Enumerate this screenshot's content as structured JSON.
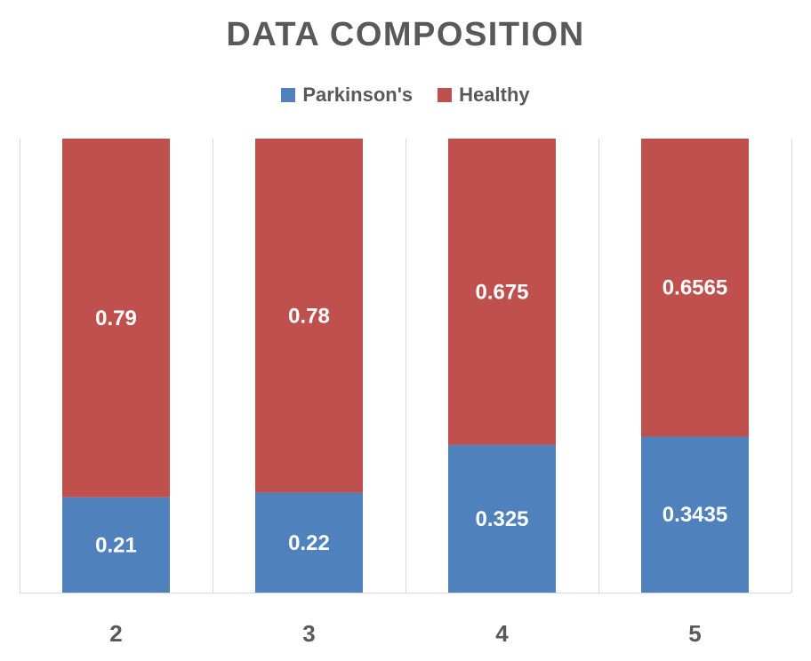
{
  "chart_data": {
    "type": "bar",
    "stacked": true,
    "title": "DATA COMPOSITION",
    "categories": [
      "2",
      "3",
      "4",
      "5"
    ],
    "series": [
      {
        "name": "Parkinson's",
        "values": [
          0.21,
          0.22,
          0.325,
          0.3435
        ],
        "color": "#4F81BD"
      },
      {
        "name": "Healthy",
        "values": [
          0.79,
          0.78,
          0.675,
          0.6565
        ],
        "color": "#C0504D"
      }
    ],
    "xlabel": "",
    "ylabel": "",
    "ylim": [
      0,
      1
    ],
    "legend_position": "top-center",
    "grid": false
  }
}
